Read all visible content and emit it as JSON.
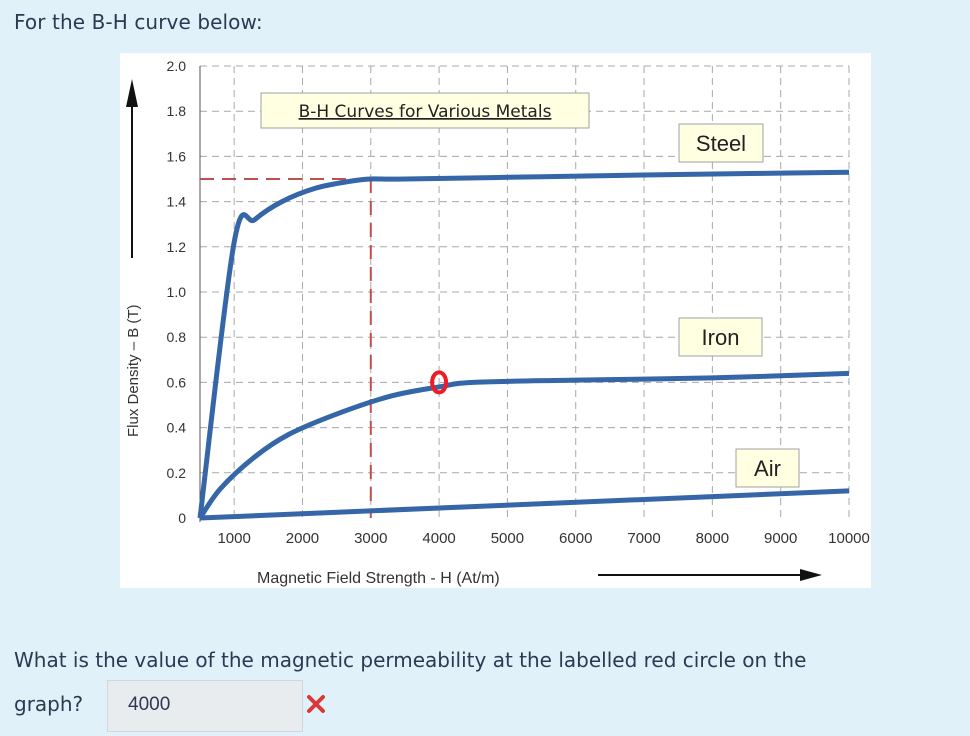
{
  "prompt": "For the B-H curve below:",
  "question": {
    "line1": "What is the value of the magnetic permeability at the labelled red circle on the",
    "line2": "graph?"
  },
  "answer": {
    "value": "4000",
    "status_icon": "incorrect-x-icon",
    "status_color": "#d9383a"
  },
  "chart_data": {
    "type": "line",
    "title": "B-H Curves for Various Metals",
    "xlabel": "Magnetic Field Strength -    H (At/m)",
    "ylabel": "Flux Density – B (T)",
    "x_ticks": [
      "1000",
      "2000",
      "3000",
      "4000",
      "5000",
      "6000",
      "7000",
      "8000",
      "9000",
      "10000"
    ],
    "y_ticks": [
      "0",
      "0.2",
      "0.4",
      "0.6",
      "0.8",
      "1.0",
      "1.2",
      "1.4",
      "1.6",
      "1.8",
      "2.0"
    ],
    "xlim": [
      0,
      9500
    ],
    "ylim": [
      0,
      2.0
    ],
    "grid": true,
    "series": [
      {
        "name": "Steel",
        "color": "#3566a8",
        "points": [
          [
            0,
            0
          ],
          [
            500,
            1.22
          ],
          [
            800,
            1.32
          ],
          [
            1200,
            1.4
          ],
          [
            1700,
            1.46
          ],
          [
            2200,
            1.49
          ],
          [
            2500,
            1.5
          ],
          [
            3000,
            1.5
          ],
          [
            5000,
            1.51
          ],
          [
            7000,
            1.52
          ],
          [
            9500,
            1.53
          ]
        ]
      },
      {
        "name": "Iron",
        "color": "#3566a8",
        "points": [
          [
            0,
            0
          ],
          [
            300,
            0.13
          ],
          [
            800,
            0.27
          ],
          [
            1300,
            0.37
          ],
          [
            2000,
            0.46
          ],
          [
            2800,
            0.54
          ],
          [
            3500,
            0.58
          ],
          [
            4000,
            0.6
          ],
          [
            5500,
            0.61
          ],
          [
            7500,
            0.62
          ],
          [
            9500,
            0.64
          ]
        ]
      },
      {
        "name": "Air",
        "color": "#3566a8",
        "points": [
          [
            0,
            0
          ],
          [
            9500,
            0.12
          ]
        ]
      }
    ],
    "reference_lines": {
      "color": "#c0504d",
      "y_value": 1.5,
      "x_value": 2500
    },
    "marker": {
      "x": 3500,
      "y": 0.6,
      "color": "#ee1c25"
    }
  }
}
